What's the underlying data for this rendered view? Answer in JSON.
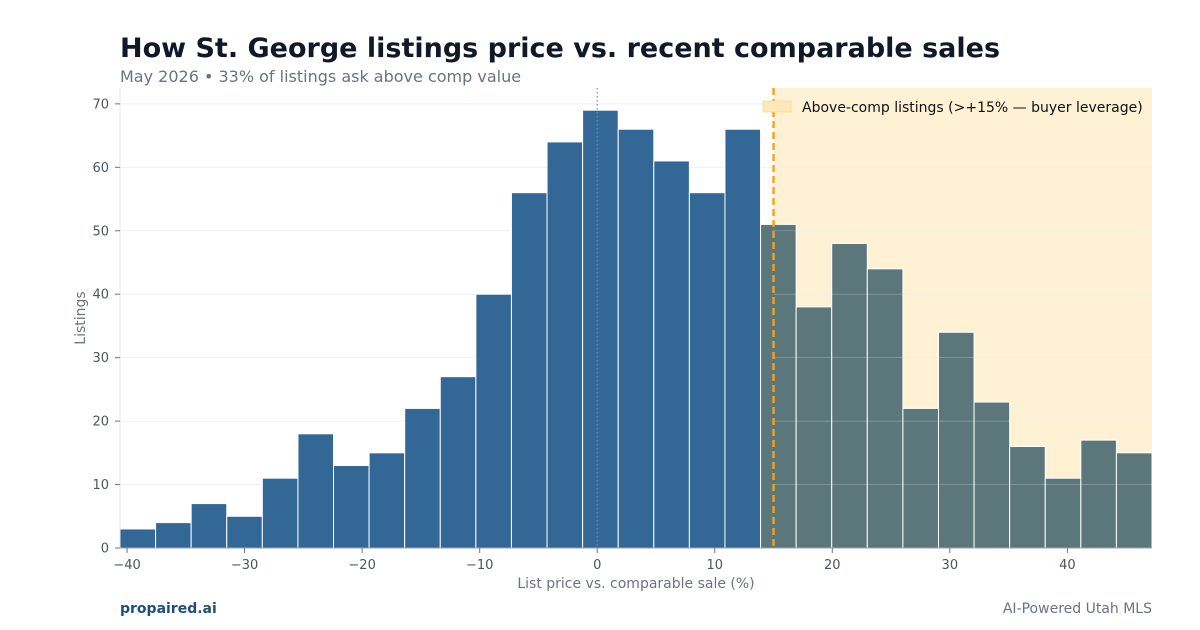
{
  "header": {
    "title": "How St. George listings price vs. recent comparable sales",
    "subtitle": "May 2026 • 33% of listings ask above comp value"
  },
  "footer": {
    "brand": "propaired.ai",
    "tagline": "AI-Powered Utah MLS"
  },
  "colors": {
    "below": "#336896",
    "above": "#5c777b",
    "shade": "#fff2d4",
    "threshold": "#f4a020",
    "zero_line": "#6b8fa8"
  },
  "chart_data": {
    "type": "bar",
    "title": "How St. George listings price vs. recent comparable sales",
    "subtitle": "May 2026 • 33% of listings ask above comp value",
    "xlabel": "List price vs. comparable sale (%)",
    "ylabel": "Listings",
    "xlim": [
      -40.6,
      47.2
    ],
    "ylim": [
      0,
      72.5
    ],
    "x_ticks": [
      -40,
      -30,
      -20,
      -10,
      0,
      10,
      20,
      30,
      40
    ],
    "x_tick_labels": [
      "−40",
      "−30",
      "−20",
      "−10",
      "0",
      "10",
      "20",
      "30",
      "40"
    ],
    "y_ticks": [
      0,
      10,
      20,
      30,
      40,
      50,
      60,
      70
    ],
    "bin_start": -40.6,
    "bin_width": 3.0276,
    "values": [
      3,
      4,
      7,
      5,
      11,
      18,
      13,
      15,
      22,
      27,
      40,
      56,
      64,
      69,
      66,
      61,
      56,
      66,
      51,
      38,
      48,
      44,
      22,
      34,
      23,
      16,
      11,
      17,
      15
    ],
    "threshold": 15,
    "legend": {
      "label": "Above-comp listings (>+15% — buyer leverage)",
      "placement": "top-right"
    },
    "grid": true
  }
}
